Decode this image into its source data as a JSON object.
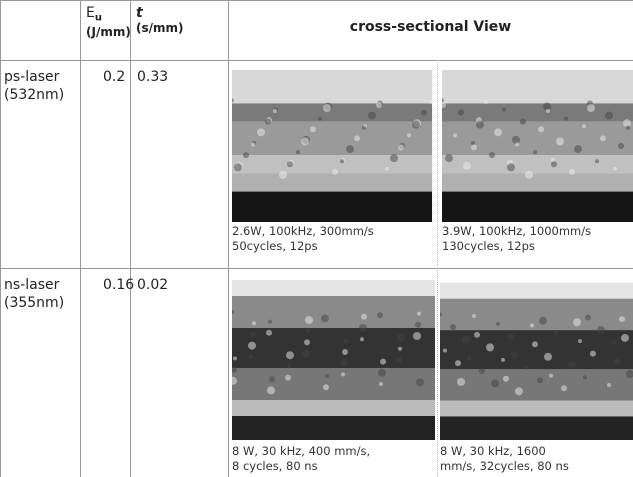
{
  "table": {
    "header": [
      {
        "symbol": "E",
        "subscript": "u",
        "unit": "(J/mm)"
      },
      {
        "symbol": "t",
        "unit": "(s/mm)"
      },
      {
        "label": "cross-sectional View"
      }
    ],
    "rows": [
      {
        "laser": [
          "ps-laser",
          "(532nm)"
        ],
        "eu": "0.2",
        "t": "0.33",
        "captions": [
          [
            "2.6W, 100kHz, 300mm/s",
            "50cycles, 12ps"
          ],
          [
            "3.9W, 100kHz, 1000mm/s",
            "130cycles, 12ps"
          ]
        ]
      },
      {
        "laser": [
          "ns-laser",
          "(355nm)"
        ],
        "eu": "0.16",
        "t": "0.02",
        "captions": [
          [
            "8 W, 30 kHz, 400 mm/s,",
            "8 cycles, 80 ns"
          ],
          [
            "8 W, 30 kHz, 1600",
            "mm/s, 32cycles, 80 ns"
          ]
        ]
      }
    ]
  }
}
